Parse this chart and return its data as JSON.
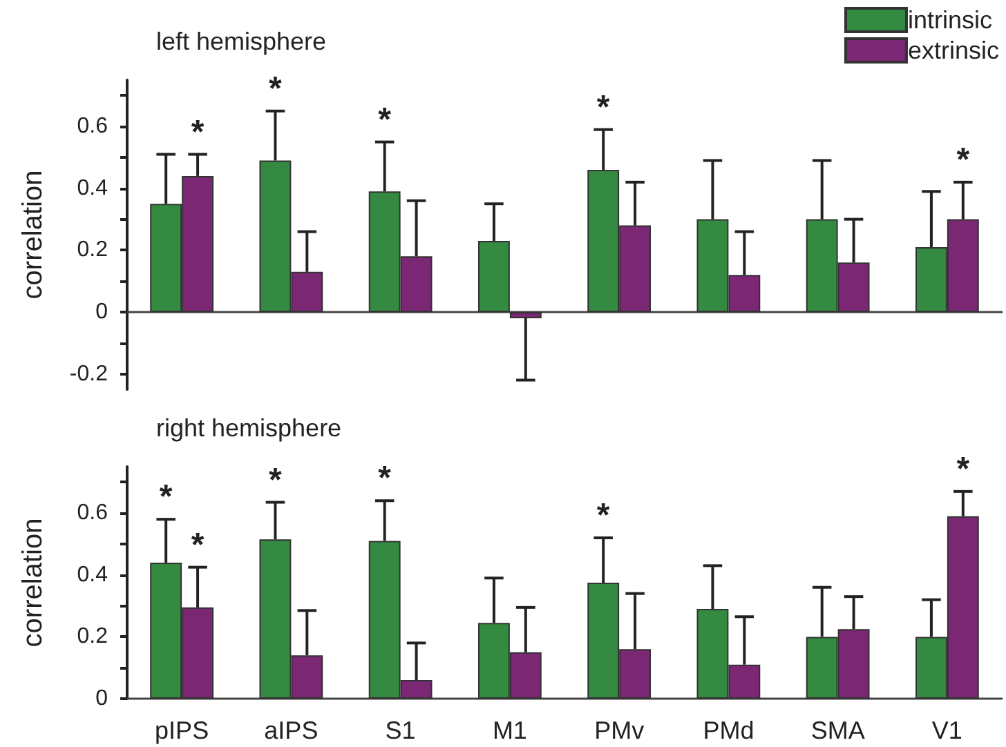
{
  "chart_data": [
    {
      "type": "bar",
      "title": "left hemisphere",
      "ylabel": "correlation",
      "categories": [
        "pIPS",
        "aIPS",
        "S1",
        "M1",
        "PMv",
        "PMd",
        "SMA",
        "V1"
      ],
      "series": [
        {
          "name": "intrinsic",
          "color": "#338a40",
          "values": [
            0.35,
            0.49,
            0.39,
            0.23,
            0.46,
            0.3,
            0.3,
            0.21
          ],
          "errors": [
            [
              0.35,
              0.51
            ],
            [
              0.49,
              0.65
            ],
            [
              0.39,
              0.55
            ],
            [
              0.23,
              0.35
            ],
            [
              0.46,
              0.59
            ],
            [
              0.3,
              0.49
            ],
            [
              0.3,
              0.49
            ],
            [
              0.21,
              0.39
            ]
          ]
        },
        {
          "name": "extrinsic",
          "color": "#7b2774",
          "values": [
            0.44,
            0.13,
            0.18,
            -0.02,
            0.28,
            0.12,
            0.16,
            0.3
          ],
          "errors": [
            [
              0.44,
              0.51
            ],
            [
              0.13,
              0.26
            ],
            [
              0.18,
              0.36
            ],
            [
              -0.22,
              -0.02
            ],
            [
              0.28,
              0.42
            ],
            [
              0.12,
              0.26
            ],
            [
              0.16,
              0.3
            ],
            [
              0.3,
              0.42
            ]
          ]
        }
      ],
      "ylim": [
        -0.25,
        0.75
      ],
      "yticks": [
        -0.2,
        {
          "value": -0.1,
          "label": null
        },
        0,
        {
          "value": 0.1,
          "label": null
        },
        0.2,
        {
          "value": 0.3,
          "label": null
        },
        0.4,
        {
          "value": 0.5,
          "label": null
        },
        0.6,
        {
          "value": 0.7,
          "label": null
        }
      ],
      "tick_labels": "y",
      "legend": "top right",
      "annotations": [
        {
          "text": "*",
          "x": "pIPS",
          "y": 0.51
        },
        {
          "text": "*",
          "x": "aIPS",
          "y": 0.65
        },
        {
          "text": "*",
          "x": "S1",
          "y": 0.55
        },
        {
          "text": "*",
          "x": "PMv",
          "y": 0.59
        },
        {
          "text": "*",
          "x": "V1",
          "y": 0.42
        }
      ]
    },
    {
      "type": "bar",
      "title": "right hemisphere",
      "ylabel": "correlation",
      "categories": [
        "pIPS",
        "aIPS",
        "S1",
        "M1",
        "PMv",
        "PMd",
        "SMA",
        "V1"
      ],
      "series": [
        {
          "color": "#338a40",
          "values": [
            0.44,
            0.515,
            0.51,
            0.245,
            0.375,
            0.29,
            0.2,
            0.2
          ],
          "errors": [
            [
              0.44,
              0.58
            ],
            [
              0.515,
              0.635
            ],
            [
              0.51,
              0.64
            ],
            [
              0.245,
              0.39
            ],
            [
              0.375,
              0.52
            ],
            [
              0.29,
              0.43
            ],
            [
              0.2,
              0.36
            ],
            [
              0.2,
              0.32
            ]
          ]
        },
        {
          "color": "#7b2774",
          "values": [
            0.295,
            0.14,
            0.06,
            0.15,
            0.16,
            0.11,
            0.225,
            0.59
          ],
          "errors": [
            [
              0.295,
              0.425
            ],
            [
              0.14,
              0.285
            ],
            [
              0.06,
              0.18
            ],
            [
              0.15,
              0.295
            ],
            [
              0.16,
              0.34
            ],
            [
              0.11,
              0.265
            ],
            [
              0.225,
              0.33
            ],
            [
              0.59,
              0.67
            ]
          ]
        }
      ],
      "ylim": [
        0,
        0.75
      ],
      "yticks": [
        0,
        {
          "value": 0.1,
          "label": null
        },
        0.2,
        {
          "value": 0.3,
          "label": null
        },
        0.4,
        {
          "value": 0.5,
          "label": null
        },
        0.6,
        {
          "value": 0.7,
          "label": null
        }
      ],
      "annotations": [
        {
          "text": "*",
          "x": "pIPS",
          "y": 0.58
        },
        {
          "text": "*",
          "x": "pIPS",
          "y": 0.425
        },
        {
          "text": "*",
          "x": "aIPS",
          "y": 0.635
        },
        {
          "text": "*",
          "x": "S1",
          "y": 0.64
        },
        {
          "text": "*",
          "x": "PMv",
          "y": 0.52
        },
        {
          "text": "*",
          "x": "V1",
          "y": 0.67
        }
      ]
    }
  ]
}
